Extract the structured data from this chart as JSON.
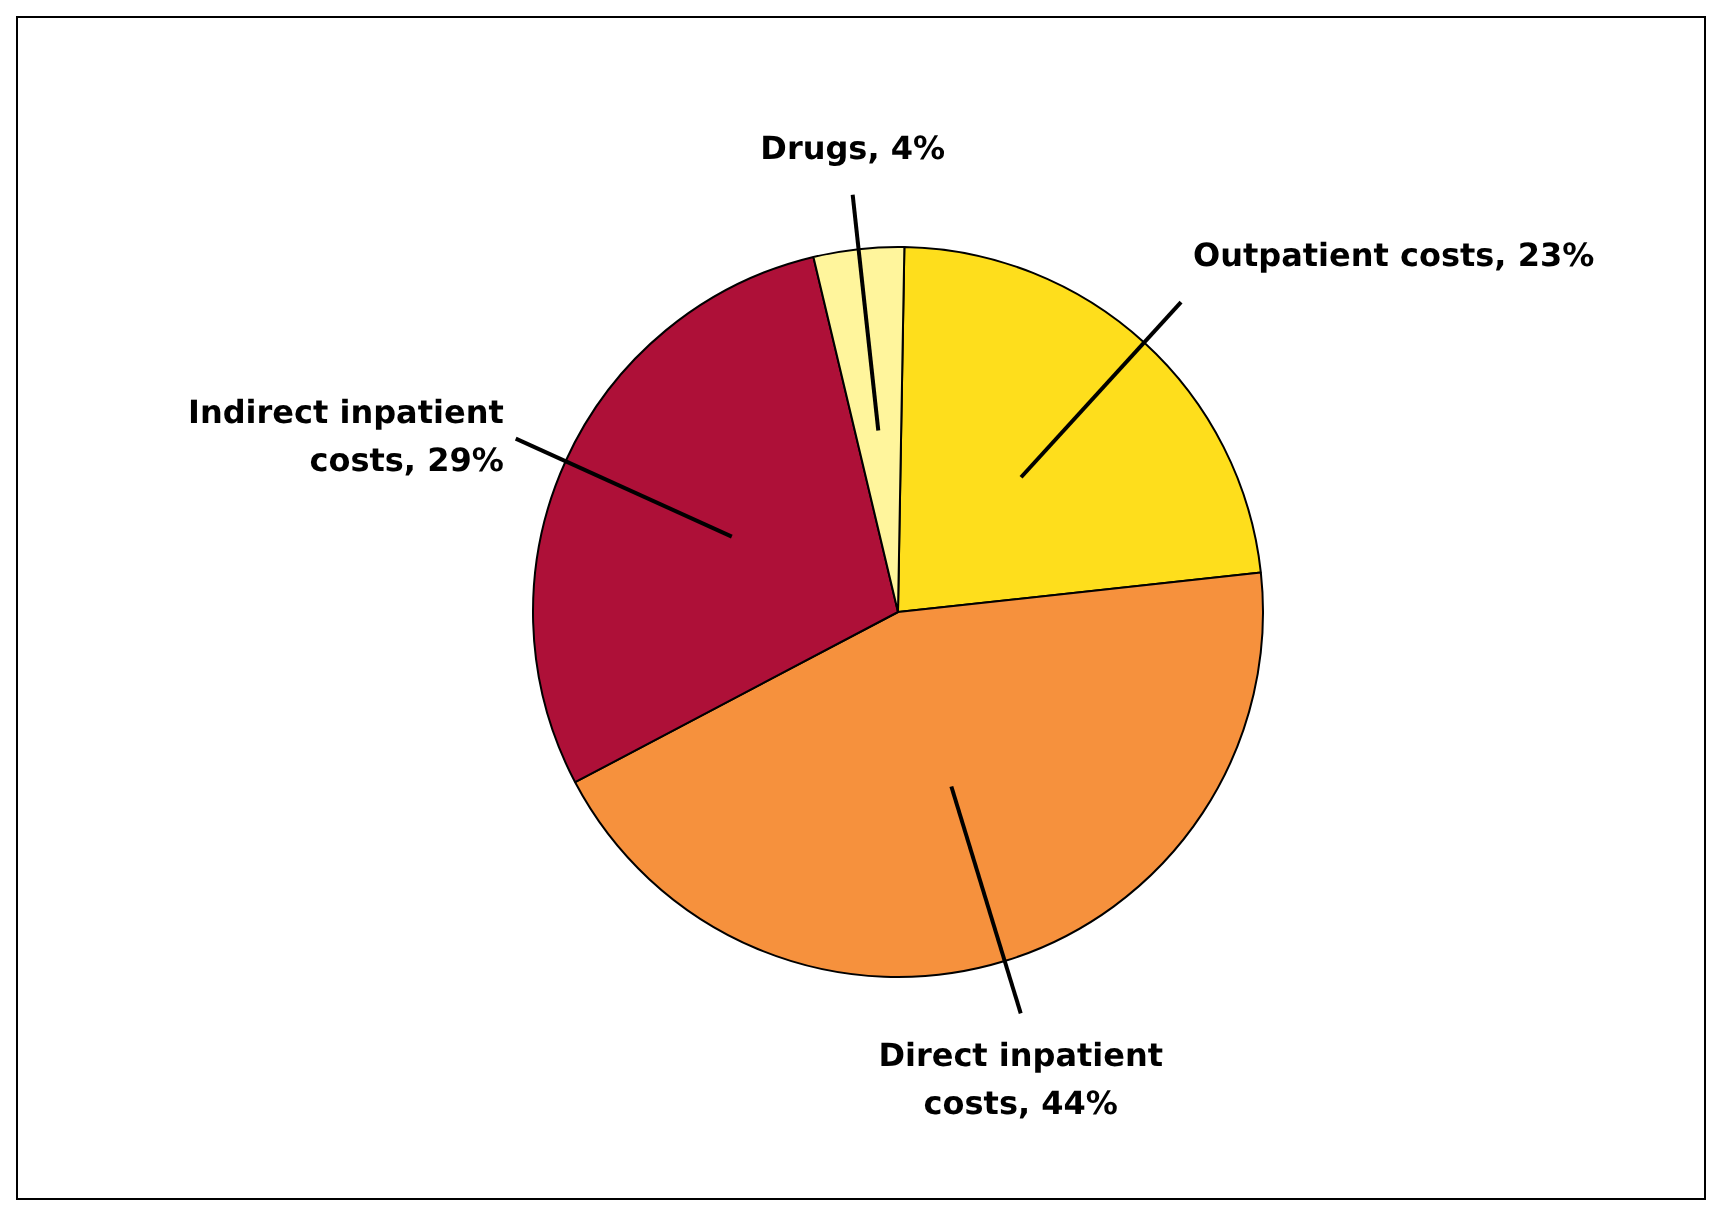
{
  "chart_data": {
    "type": "pie",
    "categories": [
      "Outpatient costs, 23%",
      "Direct inpatient costs, 44%",
      "Indirect inpatient costs, 29%",
      "Drugs, 4%"
    ],
    "values": [
      23,
      44,
      29,
      4
    ],
    "colors": [
      "#fede1c",
      "#f6913d",
      "#ae1038",
      "#fff59c"
    ]
  }
}
